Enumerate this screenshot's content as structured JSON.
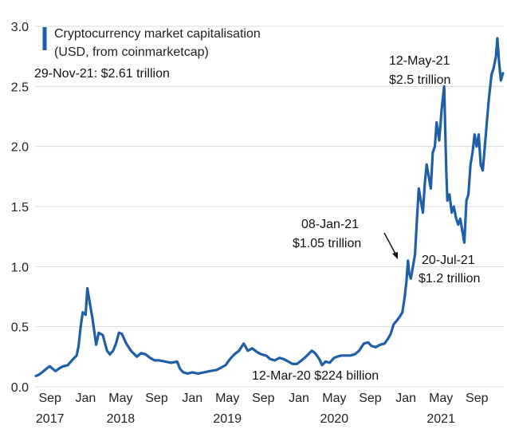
{
  "chart_data": {
    "type": "line",
    "title": "",
    "xlabel": "",
    "ylabel": "",
    "ylim": [
      0,
      3.0
    ],
    "y_ticks": [
      "0.0",
      "0.5",
      "1.0",
      "1.5",
      "2.0",
      "2.5",
      "3.0"
    ],
    "grid": "horizontal",
    "x_tick_labels": [
      {
        "date": "2017-09-01",
        "label": "Sep"
      },
      {
        "date": "2018-01-01",
        "label": "Jan"
      },
      {
        "date": "2018-05-01",
        "label": "May"
      },
      {
        "date": "2018-09-01",
        "label": "Sep"
      },
      {
        "date": "2019-01-01",
        "label": "Jan"
      },
      {
        "date": "2019-05-01",
        "label": "May"
      },
      {
        "date": "2019-09-01",
        "label": "Sep"
      },
      {
        "date": "2020-01-01",
        "label": "Jan"
      },
      {
        "date": "2020-05-01",
        "label": "May"
      },
      {
        "date": "2020-09-01",
        "label": "Sep"
      },
      {
        "date": "2021-01-01",
        "label": "Jan"
      },
      {
        "date": "2021-05-01",
        "label": "May"
      },
      {
        "date": "2021-09-01",
        "label": "Sep"
      }
    ],
    "x_year_labels": [
      {
        "date": "2017-09-01",
        "label": "2017"
      },
      {
        "date": "2018-05-01",
        "label": "2018"
      },
      {
        "date": "2019-05-01",
        "label": "2019"
      },
      {
        "date": "2020-05-01",
        "label": "2020"
      },
      {
        "date": "2021-05-01",
        "label": "2021"
      }
    ],
    "legend": {
      "position": "top-left",
      "text_lines": [
        "Cryptocurrency market capitalisation",
        "(USD, from coinmarketcap)"
      ]
    },
    "annotations": {
      "latest": "29-Nov-21: $2.61 trillion",
      "may21": [
        "12-May-21",
        "$2.5 trillion"
      ],
      "jan21": [
        "08-Jan-21",
        "$1.05 trillion"
      ],
      "jul21": [
        "20-Jul-21",
        "$1.2 trillion"
      ],
      "mar20": "12-Mar-20 $224 billion"
    },
    "series": [
      {
        "color": "#1f5fa8",
        "x": [
          "2017-07-15",
          "2017-07-25",
          "2017-08-05",
          "2017-08-15",
          "2017-08-25",
          "2017-09-01",
          "2017-09-10",
          "2017-09-20",
          "2017-10-01",
          "2017-10-15",
          "2017-11-01",
          "2017-11-15",
          "2017-12-01",
          "2017-12-08",
          "2017-12-15",
          "2017-12-22",
          "2018-01-01",
          "2018-01-07",
          "2018-01-15",
          "2018-01-25",
          "2018-02-06",
          "2018-02-15",
          "2018-03-01",
          "2018-03-15",
          "2018-03-25",
          "2018-04-05",
          "2018-04-15",
          "2018-04-25",
          "2018-05-05",
          "2018-05-20",
          "2018-06-05",
          "2018-06-25",
          "2018-07-10",
          "2018-07-25",
          "2018-08-10",
          "2018-08-25",
          "2018-09-10",
          "2018-10-01",
          "2018-10-20",
          "2018-11-10",
          "2018-11-20",
          "2018-12-01",
          "2018-12-15",
          "2019-01-01",
          "2019-01-20",
          "2019-02-10",
          "2019-03-01",
          "2019-03-25",
          "2019-04-10",
          "2019-04-25",
          "2019-05-10",
          "2019-05-25",
          "2019-06-10",
          "2019-06-26",
          "2019-07-10",
          "2019-07-25",
          "2019-08-10",
          "2019-08-25",
          "2019-09-10",
          "2019-09-25",
          "2019-10-10",
          "2019-10-26",
          "2019-11-10",
          "2019-11-25",
          "2019-12-10",
          "2019-12-25",
          "2020-01-10",
          "2020-01-25",
          "2020-02-14",
          "2020-02-25",
          "2020-03-05",
          "2020-03-12",
          "2020-03-20",
          "2020-04-01",
          "2020-04-15",
          "2020-04-30",
          "2020-05-10",
          "2020-05-25",
          "2020-06-10",
          "2020-06-25",
          "2020-07-10",
          "2020-07-25",
          "2020-08-10",
          "2020-08-25",
          "2020-09-05",
          "2020-09-20",
          "2020-10-05",
          "2020-10-20",
          "2020-11-01",
          "2020-11-10",
          "2020-11-20",
          "2020-12-01",
          "2020-12-10",
          "2020-12-20",
          "2020-12-28",
          "2021-01-03",
          "2021-01-08",
          "2021-01-12",
          "2021-01-18",
          "2021-01-25",
          "2021-02-01",
          "2021-02-08",
          "2021-02-14",
          "2021-02-21",
          "2021-02-28",
          "2021-03-07",
          "2021-03-13",
          "2021-03-20",
          "2021-03-27",
          "2021-04-03",
          "2021-04-10",
          "2021-04-16",
          "2021-04-25",
          "2021-05-03",
          "2021-05-12",
          "2021-05-19",
          "2021-05-23",
          "2021-05-30",
          "2021-06-07",
          "2021-06-14",
          "2021-06-22",
          "2021-06-29",
          "2021-07-06",
          "2021-07-13",
          "2021-07-20",
          "2021-07-27",
          "2021-08-03",
          "2021-08-10",
          "2021-08-17",
          "2021-08-24",
          "2021-08-31",
          "2021-09-07",
          "2021-09-14",
          "2021-09-21",
          "2021-09-28",
          "2021-10-05",
          "2021-10-12",
          "2021-10-21",
          "2021-10-28",
          "2021-11-05",
          "2021-11-10",
          "2021-11-16",
          "2021-11-22",
          "2021-11-29"
        ],
        "y": [
          0.09,
          0.1,
          0.12,
          0.14,
          0.16,
          0.17,
          0.15,
          0.13,
          0.15,
          0.17,
          0.18,
          0.22,
          0.26,
          0.34,
          0.5,
          0.62,
          0.6,
          0.82,
          0.7,
          0.56,
          0.35,
          0.45,
          0.43,
          0.3,
          0.27,
          0.3,
          0.36,
          0.45,
          0.44,
          0.36,
          0.3,
          0.25,
          0.28,
          0.27,
          0.24,
          0.22,
          0.22,
          0.21,
          0.2,
          0.21,
          0.15,
          0.12,
          0.11,
          0.12,
          0.11,
          0.12,
          0.13,
          0.14,
          0.16,
          0.18,
          0.23,
          0.27,
          0.3,
          0.36,
          0.3,
          0.32,
          0.29,
          0.27,
          0.26,
          0.23,
          0.22,
          0.24,
          0.23,
          0.21,
          0.19,
          0.19,
          0.22,
          0.25,
          0.3,
          0.28,
          0.25,
          0.224,
          0.18,
          0.21,
          0.2,
          0.24,
          0.25,
          0.26,
          0.26,
          0.26,
          0.27,
          0.3,
          0.36,
          0.37,
          0.34,
          0.33,
          0.35,
          0.36,
          0.4,
          0.44,
          0.52,
          0.55,
          0.58,
          0.62,
          0.75,
          0.88,
          1.05,
          0.95,
          0.9,
          1.0,
          1.1,
          1.4,
          1.65,
          1.55,
          1.45,
          1.7,
          1.85,
          1.75,
          1.65,
          1.95,
          2.0,
          2.2,
          2.05,
          2.3,
          2.5,
          1.8,
          1.55,
          1.6,
          1.45,
          1.5,
          1.4,
          1.35,
          1.4,
          1.3,
          1.2,
          1.55,
          1.6,
          1.85,
          1.95,
          2.1,
          2.0,
          2.1,
          1.85,
          1.8,
          2.0,
          2.2,
          2.4,
          2.6,
          2.65,
          2.75,
          2.9,
          2.7,
          2.55,
          2.61
        ]
      }
    ]
  }
}
